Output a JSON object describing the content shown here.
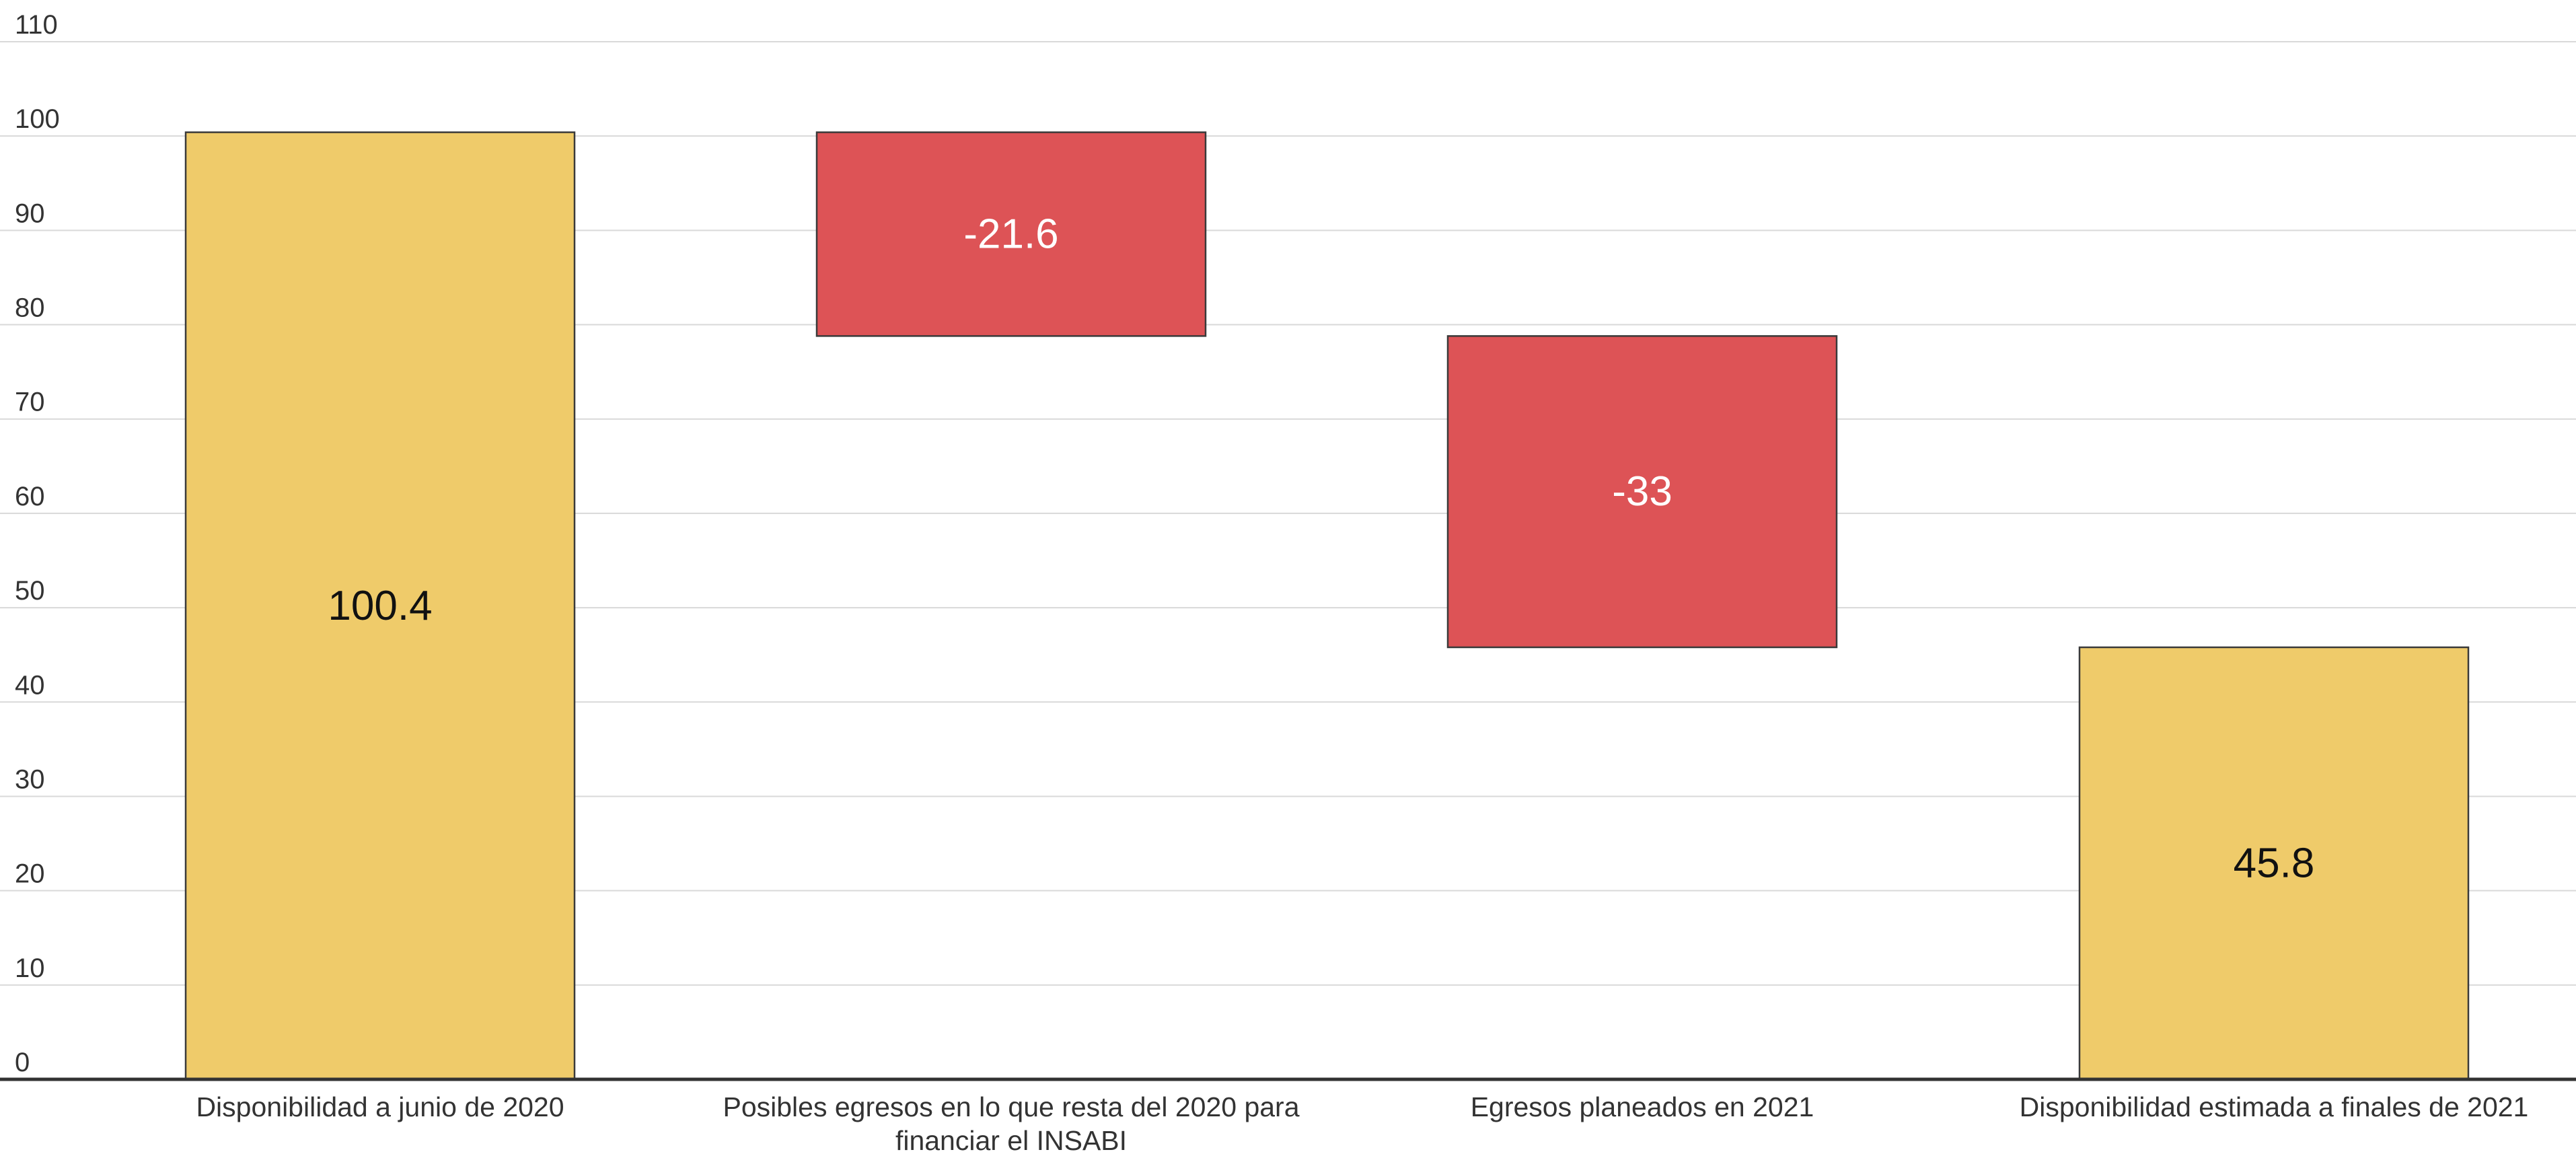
{
  "chart_data": {
    "type": "bar",
    "subtype": "waterfall",
    "categories": [
      "Disponibilidad a junio de 2020",
      "Posibles egresos en lo que resta del 2020 para financiar el INSABI",
      "Egresos planeados en 2021",
      "Disponibilidad estimada a finales de 2021"
    ],
    "values": [
      100.4,
      -21.6,
      -33,
      45.8
    ],
    "bar_kind": [
      "total",
      "change",
      "change",
      "total"
    ],
    "data_labels": [
      "100.4",
      "-21.6",
      "-33",
      "45.8"
    ],
    "ylim": [
      0,
      110
    ],
    "yticks": [
      "0",
      "10",
      "20",
      "30",
      "40",
      "50",
      "60",
      "70",
      "80",
      "90",
      "100",
      "110"
    ],
    "grid": true,
    "legend": "none",
    "colors": {
      "total": "#EFCB6A",
      "decrease": "#DD5356",
      "total_label": "#111111",
      "decrease_label": "#ffffff"
    }
  }
}
